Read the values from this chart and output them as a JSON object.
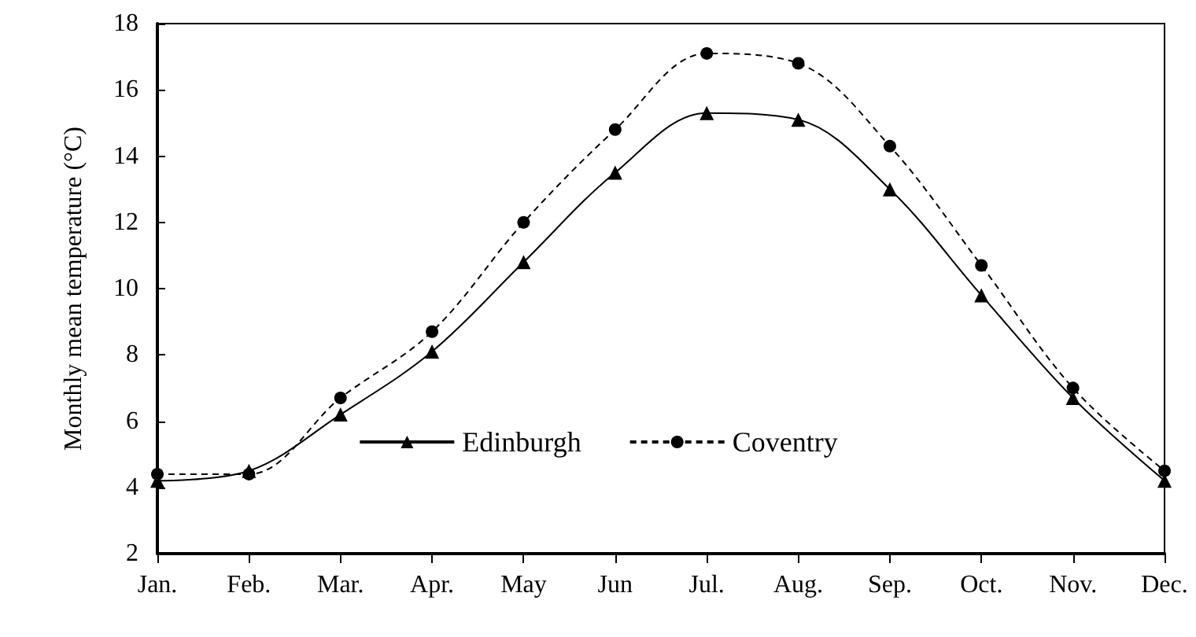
{
  "chart_data": {
    "type": "line",
    "ylabel": "Monthly mean temperature (°C)",
    "categories": [
      "Jan.",
      "Feb.",
      "Mar.",
      "Apr.",
      "May",
      "Jun",
      "Jul.",
      "Aug.",
      "Sep.",
      "Oct.",
      "Nov.",
      "Dec."
    ],
    "series": [
      {
        "name": "Edinburgh",
        "color": "#000000",
        "marker": "triangle",
        "line_style": "solid",
        "values": [
          4.2,
          4.5,
          6.2,
          8.1,
          10.8,
          13.5,
          15.3,
          15.1,
          13.0,
          9.8,
          6.7,
          4.2
        ]
      },
      {
        "name": "Coventry",
        "color": "#000000",
        "marker": "circle",
        "line_style": "dashed",
        "values": [
          4.4,
          4.4,
          6.7,
          8.7,
          12.0,
          14.8,
          17.1,
          16.8,
          14.3,
          10.7,
          7.0,
          4.5
        ]
      }
    ],
    "ylim": [
      2,
      18
    ],
    "yticks": [
      2,
      4,
      6,
      8,
      10,
      12,
      14,
      16,
      18
    ],
    "grid": false,
    "legend": "bottom"
  }
}
